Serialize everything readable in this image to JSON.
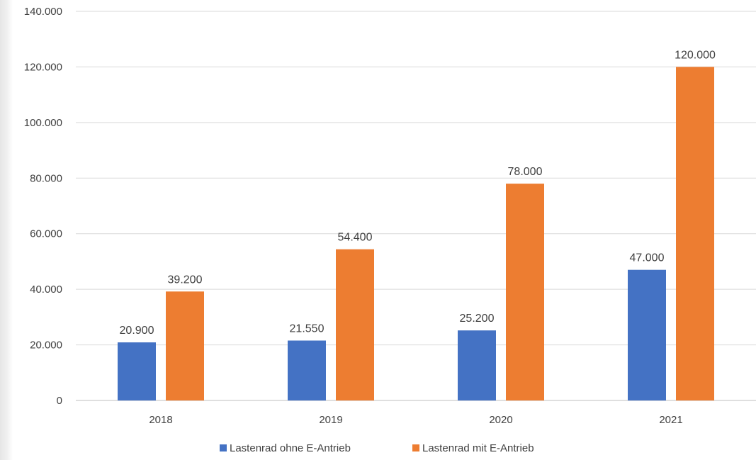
{
  "chart_data": {
    "type": "bar",
    "title": "",
    "xlabel": "",
    "ylabel": "",
    "categories": [
      "2018",
      "2019",
      "2020",
      "2021"
    ],
    "series": [
      {
        "name": "Lastenrad ohne E-Antrieb",
        "color": "#4472C4",
        "values": [
          20900,
          21550,
          25200,
          47000
        ],
        "labels": [
          "20.900",
          "21.550",
          "25.200",
          "47.000"
        ]
      },
      {
        "name": "Lastenrad mit E-Antrieb",
        "color": "#ED7D31",
        "values": [
          39200,
          54400,
          78000,
          120000
        ],
        "labels": [
          "39.200",
          "54.400",
          "78.000",
          "120.000"
        ]
      }
    ],
    "ylim": [
      0,
      140000
    ],
    "y_ticks": [
      0,
      20000,
      40000,
      60000,
      80000,
      100000,
      120000,
      140000
    ],
    "y_tick_labels": [
      "0",
      "20.000",
      "40.000",
      "60.000",
      "80.000",
      "100.000",
      "120.000",
      "140.000"
    ],
    "grid": true,
    "legend_position": "bottom"
  }
}
